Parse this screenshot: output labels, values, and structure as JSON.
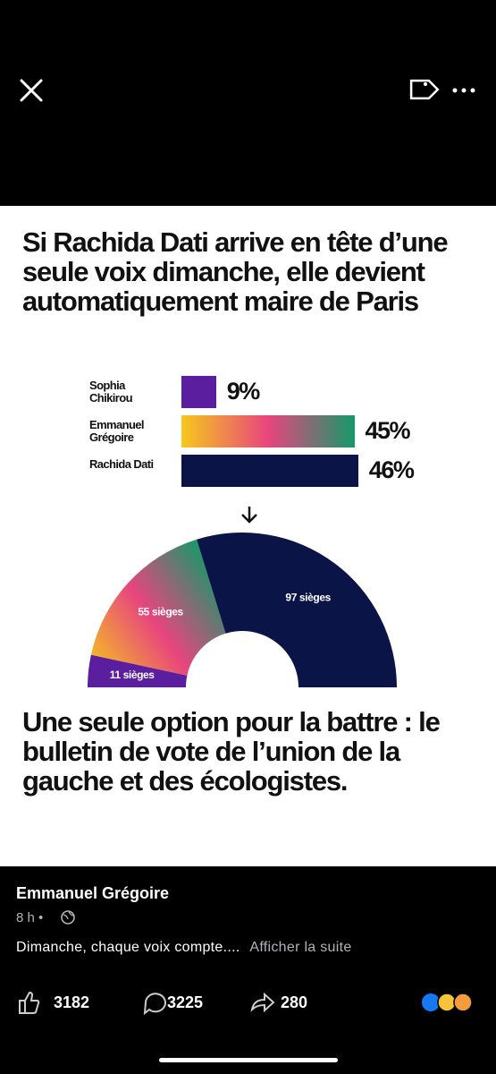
{
  "headline": "Si Rachida Dati arrive en tête d’une seule voix dimanche, elle devient automatiquement maire de Paris",
  "chart_data": [
    {
      "type": "bar",
      "categories": [
        "Sophia Chikirou",
        "Emmanuel Grégoire",
        "Rachida Dati"
      ],
      "values": [
        9,
        45,
        46
      ],
      "value_labels": [
        "9%",
        "45%",
        "46%"
      ],
      "colors": [
        "#5a1e9e",
        [
          "#f6c81c",
          "#e8457e",
          "#15996a"
        ],
        "#0b1447"
      ]
    },
    {
      "type": "hemicycle",
      "categories": [
        "Sophia Chikirou",
        "Emmanuel Grégoire",
        "Rachida Dati"
      ],
      "values": [
        11,
        55,
        97
      ],
      "value_labels": [
        "11 sièges",
        "55 sièges",
        "97 sièges"
      ],
      "colors": [
        "#5a1e9e",
        [
          "#f6c81c",
          "#e8457e",
          "#15996a"
        ],
        "#0b1447"
      ]
    }
  ],
  "conclusion": "Une seule option pour la battre : le bulletin de vote de l’union de la gauche et des écologistes.",
  "post": {
    "author": "Emmanuel Grégoire",
    "time": "8 h •",
    "text": "Dimanche, chaque voix compte....",
    "more": "Afficher la suite",
    "likes": 3182,
    "comments": 3225,
    "shares": 280
  }
}
